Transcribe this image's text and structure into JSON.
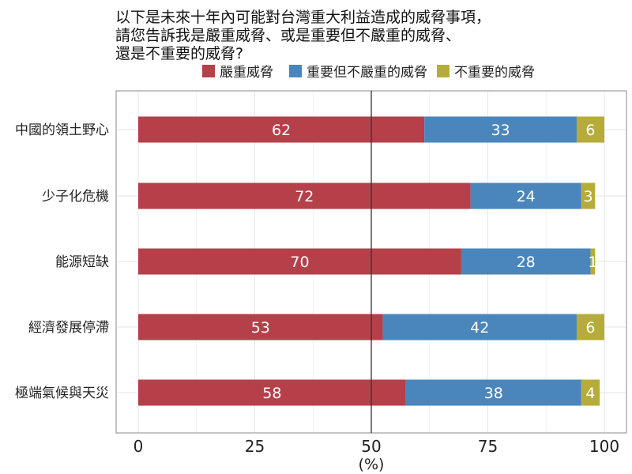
{
  "chart_data": {
    "type": "bar",
    "orientation": "horizontal",
    "stacked": true,
    "title_lines": [
      "以下是未來十年內可能對台灣重大利益造成的威脅事項，",
      "請您告訴我是嚴重威脅、或是重要但不嚴重的威脅、",
      "還是不重要的威脅?"
    ],
    "xlabel": "(%)",
    "ylabel": "",
    "xlim": [
      0,
      100
    ],
    "xticks": [
      "0",
      "25",
      "50",
      "75",
      "100"
    ],
    "reference_line": 50,
    "grid": true,
    "legend_position": "top",
    "categories": [
      "中國的領土野心",
      "少子化危機",
      "能源短缺",
      "經濟發展停滯",
      "極端氣候與天災"
    ],
    "series": [
      {
        "name": "嚴重威脅",
        "color": "#b5404a",
        "values": [
          62,
          72,
          70,
          53,
          58
        ]
      },
      {
        "name": "重要但不嚴重的威脅",
        "color": "#4a86bb",
        "values": [
          33,
          24,
          28,
          42,
          38
        ]
      },
      {
        "name": "不重要的威脅",
        "color": "#b5ac3a",
        "values": [
          6,
          3,
          1,
          6,
          4
        ]
      }
    ]
  }
}
